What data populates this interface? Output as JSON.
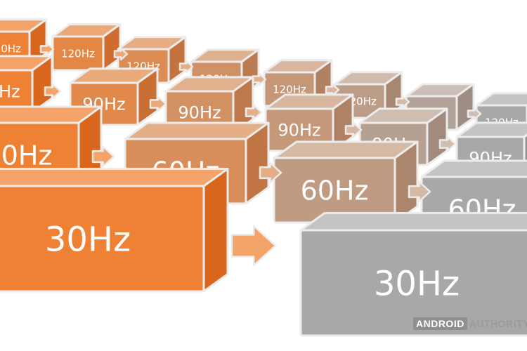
{
  "diagram": {
    "labels": {
      "hz120": "120Hz",
      "hz90": "90Hz",
      "hz60": "60Hz",
      "hz30": "30Hz"
    }
  },
  "watermark": {
    "box": "ANDROID",
    "text": "AUTHORITY"
  },
  "colors": {
    "orange_front": "#ee8133",
    "orange_side": "#d8661c",
    "orange_top": "#f4a468",
    "gray_front": "#a8a8a8",
    "gray_side": "#949494",
    "gray_top": "#c4c4c4",
    "outline": "#ececec",
    "label": "#ffffff"
  }
}
